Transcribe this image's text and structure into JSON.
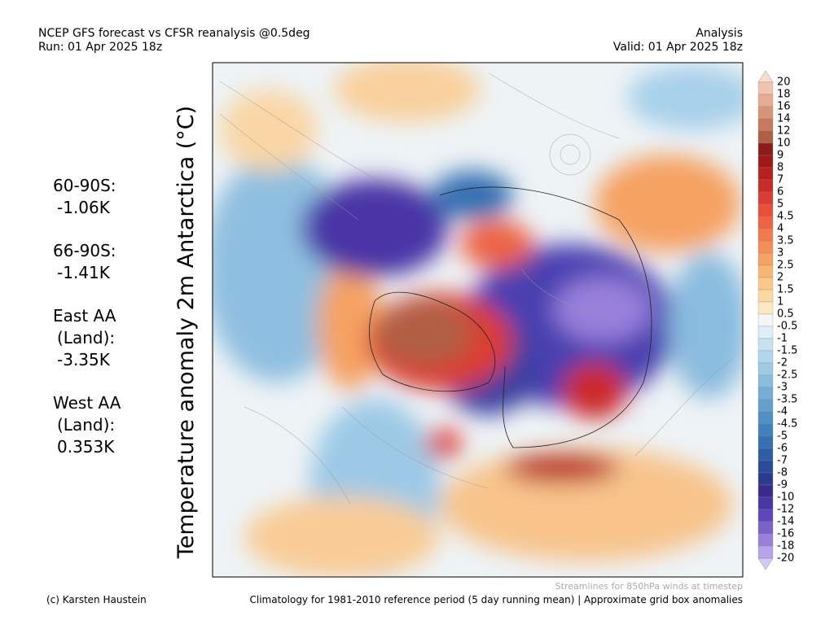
{
  "header": {
    "title": "NCEP GFS forecast vs CFSR reanalysis @0.5deg",
    "run": "Run: 01 Apr 2025 18z",
    "product": "Analysis",
    "valid": "Valid: 01 Apr 2025 18z"
  },
  "axis_label": "Temperature anomaly 2m Antarctica (°C)",
  "stats": [
    {
      "lines": [
        "60-90S:",
        "-1.06K"
      ]
    },
    {
      "lines": [
        "66-90S:",
        "-1.41K"
      ]
    },
    {
      "lines": [
        "East AA",
        "(Land):",
        "-3.35K"
      ]
    },
    {
      "lines": [
        "West AA",
        "(Land):",
        "0.353K"
      ]
    }
  ],
  "colorbar": {
    "labels": [
      "20",
      "18",
      "16",
      "14",
      "12",
      "10",
      "9",
      "8",
      "7",
      "6",
      "5",
      "4.5",
      "4",
      "3.5",
      "3",
      "2.5",
      "2",
      "1.5",
      "1",
      "0.5",
      "-0.5",
      "-1",
      "-1.5",
      "-2",
      "-2.5",
      "-3",
      "-3.5",
      "-4",
      "-4.5",
      "-5",
      "-6",
      "-7",
      "-8",
      "-9",
      "-10",
      "-12",
      "-14",
      "-16",
      "-18",
      "-20"
    ],
    "colors": [
      "#f2c4b0",
      "#e6ac92",
      "#d89478",
      "#c67a5e",
      "#b05e44",
      "#8c1c1c",
      "#a01818",
      "#b82020",
      "#cc2a2a",
      "#dc3c32",
      "#e8503a",
      "#ee6442",
      "#f27a4c",
      "#f48e58",
      "#f6a264",
      "#f8b674",
      "#fac888",
      "#fcd8a0",
      "#fde8c4",
      "#f5f5f5",
      "#dceef8",
      "#c6e2f2",
      "#b2d6ec",
      "#9ecae6",
      "#8abcdf",
      "#76aed6",
      "#62a0ce",
      "#5090c4",
      "#4280bc",
      "#3670b2",
      "#2c5ea6",
      "#284c9a",
      "#2a3a8e",
      "#3a2a8e",
      "#4a36a6",
      "#6048bc",
      "#7a62cc",
      "#9880dc",
      "#b8a4ea"
    ],
    "over_color": "#f8dccc",
    "under_color": "#d4c8f4"
  },
  "footer": {
    "streamlines": "Streamlines for 850hPa winds at timestep",
    "credit": "(c) Karsten Haustein",
    "climatology": "Climatology for 1981-2010 reference period (5 day running mean) | Approximate grid box anomalies"
  }
}
